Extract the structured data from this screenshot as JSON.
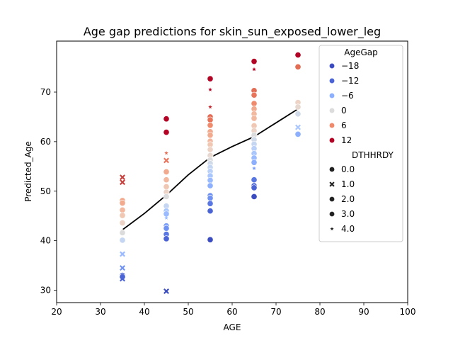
{
  "chart_data": {
    "type": "scatter",
    "title": "Age gap predictions for skin_sun_exposed_lower_leg",
    "xlabel": "AGE",
    "ylabel": "Predicted_Age",
    "xlim": [
      20,
      100
    ],
    "ylim": [
      27.5,
      80.3
    ],
    "xticks": [
      20,
      30,
      40,
      50,
      60,
      70,
      80,
      90,
      100
    ],
    "yticks": [
      30,
      40,
      50,
      60,
      70
    ],
    "grid": false,
    "legend": {
      "placement": "top-right",
      "hue_title": "AgeGap",
      "hue_entries": [
        {
          "label": "−18",
          "color": "#3b4cc0"
        },
        {
          "label": "−12",
          "color": "#4b64d5"
        },
        {
          "label": "−6",
          "color": "#8db0fe"
        },
        {
          "label": "0",
          "color": "#dddcdc"
        },
        {
          "label": "6",
          "color": "#f08a6c"
        },
        {
          "label": "12",
          "color": "#b40426"
        }
      ],
      "style_title": "DTHHRDY",
      "style_entries": [
        {
          "label": "0.0",
          "marker": "circle"
        },
        {
          "label": "1.0",
          "marker": "x"
        },
        {
          "label": "2.0",
          "marker": "circle"
        },
        {
          "label": "3.0",
          "marker": "circle"
        },
        {
          "label": "4.0",
          "marker": "star"
        }
      ]
    },
    "trend_line": {
      "x": [
        35,
        40,
        45,
        50,
        55,
        60,
        65,
        70,
        75
      ],
      "y": [
        42.2,
        45.5,
        49.2,
        53.3,
        56.8,
        59.0,
        61.0,
        63.8,
        66.6
      ]
    },
    "points": [
      {
        "x": 35,
        "y": 52.8,
        "marker": "x",
        "color": "#c8403c"
      },
      {
        "x": 35,
        "y": 51.8,
        "marker": "x",
        "color": "#c8403c"
      },
      {
        "x": 35,
        "y": 48.1,
        "marker": "circle",
        "color": "#f2aa8e"
      },
      {
        "x": 35,
        "y": 47.6,
        "marker": "circle",
        "color": "#f2aa8e"
      },
      {
        "x": 35,
        "y": 46.2,
        "marker": "circle",
        "color": "#f2b8a0"
      },
      {
        "x": 35,
        "y": 45.1,
        "marker": "circle",
        "color": "#f0c7b3"
      },
      {
        "x": 35,
        "y": 43.6,
        "marker": "circle",
        "color": "#ecd3c5"
      },
      {
        "x": 35,
        "y": 42.1,
        "marker": "star",
        "color": "#e6d7cf"
      },
      {
        "x": 35,
        "y": 41.6,
        "marker": "circle",
        "color": "#dddcdc"
      },
      {
        "x": 35,
        "y": 40.1,
        "marker": "circle",
        "color": "#c5d6f2"
      },
      {
        "x": 35,
        "y": 37.3,
        "marker": "x",
        "color": "#9abbff"
      },
      {
        "x": 35,
        "y": 34.5,
        "marker": "x",
        "color": "#6f92f3"
      },
      {
        "x": 35,
        "y": 33.0,
        "marker": "circle",
        "color": "#4b64d5"
      },
      {
        "x": 35,
        "y": 32.7,
        "marker": "circle",
        "color": "#4b64d5"
      },
      {
        "x": 35,
        "y": 32.3,
        "marker": "x",
        "color": "#4b64d5"
      },
      {
        "x": 45,
        "y": 64.6,
        "marker": "circle",
        "color": "#b40426"
      },
      {
        "x": 45,
        "y": 61.9,
        "marker": "circle",
        "color": "#b40426"
      },
      {
        "x": 45,
        "y": 57.7,
        "marker": "star",
        "color": "#e36c55"
      },
      {
        "x": 45,
        "y": 56.2,
        "marker": "x",
        "color": "#e7745b"
      },
      {
        "x": 45,
        "y": 53.9,
        "marker": "circle",
        "color": "#f2aa8e"
      },
      {
        "x": 45,
        "y": 52.3,
        "marker": "circle",
        "color": "#f2b8a0"
      },
      {
        "x": 45,
        "y": 50.9,
        "marker": "circle",
        "color": "#f0c7b3"
      },
      {
        "x": 45,
        "y": 49.8,
        "marker": "circle",
        "color": "#ecd3c5"
      },
      {
        "x": 45,
        "y": 48.9,
        "marker": "circle",
        "color": "#dddcdc"
      },
      {
        "x": 45,
        "y": 47.0,
        "marker": "circle",
        "color": "#c5d6f2"
      },
      {
        "x": 45,
        "y": 46.0,
        "marker": "circle",
        "color": "#aac7fd"
      },
      {
        "x": 45,
        "y": 45.4,
        "marker": "circle",
        "color": "#9abbff"
      },
      {
        "x": 45,
        "y": 44.6,
        "marker": "star",
        "color": "#9abbff"
      },
      {
        "x": 45,
        "y": 43.0,
        "marker": "circle",
        "color": "#7b9ff9"
      },
      {
        "x": 45,
        "y": 42.5,
        "marker": "circle",
        "color": "#6f92f3"
      },
      {
        "x": 45,
        "y": 41.3,
        "marker": "circle",
        "color": "#5977e3"
      },
      {
        "x": 45,
        "y": 40.4,
        "marker": "circle",
        "color": "#4b64d5"
      },
      {
        "x": 45,
        "y": 29.8,
        "marker": "x",
        "color": "#3b4cc0"
      },
      {
        "x": 55,
        "y": 72.7,
        "marker": "circle",
        "color": "#b40426"
      },
      {
        "x": 55,
        "y": 70.5,
        "marker": "star",
        "color": "#b40426"
      },
      {
        "x": 55,
        "y": 67.0,
        "marker": "star",
        "color": "#c0282f"
      },
      {
        "x": 55,
        "y": 65.0,
        "marker": "circle",
        "color": "#e36c55"
      },
      {
        "x": 55,
        "y": 64.4,
        "marker": "circle",
        "color": "#e7745b"
      },
      {
        "x": 55,
        "y": 63.3,
        "marker": "circle",
        "color": "#f08a6c"
      },
      {
        "x": 55,
        "y": 62.0,
        "marker": "circle",
        "color": "#f2aa8e"
      },
      {
        "x": 55,
        "y": 61.3,
        "marker": "circle",
        "color": "#f2aa8e"
      },
      {
        "x": 55,
        "y": 60.1,
        "marker": "circle",
        "color": "#f2b8a0"
      },
      {
        "x": 55,
        "y": 59.4,
        "marker": "circle",
        "color": "#f0c7b3"
      },
      {
        "x": 55,
        "y": 58.4,
        "marker": "circle",
        "color": "#ecd3c5"
      },
      {
        "x": 55,
        "y": 57.2,
        "marker": "circle",
        "color": "#e6d7cf"
      },
      {
        "x": 55,
        "y": 56.3,
        "marker": "circle",
        "color": "#dddcdc"
      },
      {
        "x": 55,
        "y": 55.6,
        "marker": "circle",
        "color": "#d1dae9"
      },
      {
        "x": 55,
        "y": 54.8,
        "marker": "circle",
        "color": "#c5d6f2"
      },
      {
        "x": 55,
        "y": 54.0,
        "marker": "circle",
        "color": "#b9d0f9"
      },
      {
        "x": 55,
        "y": 53.1,
        "marker": "circle",
        "color": "#aac7fd"
      },
      {
        "x": 55,
        "y": 52.2,
        "marker": "circle",
        "color": "#9abbff"
      },
      {
        "x": 55,
        "y": 51.1,
        "marker": "circle",
        "color": "#8db0fe"
      },
      {
        "x": 55,
        "y": 49.1,
        "marker": "circle",
        "color": "#6f92f3"
      },
      {
        "x": 55,
        "y": 48.6,
        "marker": "circle",
        "color": "#6f92f3"
      },
      {
        "x": 55,
        "y": 47.5,
        "marker": "circle",
        "color": "#5977e3"
      },
      {
        "x": 55,
        "y": 46.0,
        "marker": "circle",
        "color": "#4b64d5"
      },
      {
        "x": 55,
        "y": 40.2,
        "marker": "circle",
        "color": "#3b4cc0"
      },
      {
        "x": 65,
        "y": 76.2,
        "marker": "circle",
        "color": "#b40426"
      },
      {
        "x": 65,
        "y": 74.6,
        "marker": "star",
        "color": "#b40426"
      },
      {
        "x": 65,
        "y": 70.3,
        "marker": "circle",
        "color": "#e36c55"
      },
      {
        "x": 65,
        "y": 69.4,
        "marker": "circle",
        "color": "#e7745b"
      },
      {
        "x": 65,
        "y": 67.7,
        "marker": "circle",
        "color": "#f08a6c"
      },
      {
        "x": 65,
        "y": 66.6,
        "marker": "circle",
        "color": "#f2aa8e"
      },
      {
        "x": 65,
        "y": 65.6,
        "marker": "circle",
        "color": "#f2b8a0"
      },
      {
        "x": 65,
        "y": 64.7,
        "marker": "circle",
        "color": "#f2b8a0"
      },
      {
        "x": 65,
        "y": 63.2,
        "marker": "circle",
        "color": "#f0c7b3"
      },
      {
        "x": 65,
        "y": 62.2,
        "marker": "circle",
        "color": "#ecd3c5"
      },
      {
        "x": 65,
        "y": 61.3,
        "marker": "circle",
        "color": "#dddcdc"
      },
      {
        "x": 65,
        "y": 60.4,
        "marker": "circle",
        "color": "#d1dae9"
      },
      {
        "x": 65,
        "y": 59.5,
        "marker": "circle",
        "color": "#c5d6f2"
      },
      {
        "x": 65,
        "y": 58.6,
        "marker": "circle",
        "color": "#b9d0f9"
      },
      {
        "x": 65,
        "y": 57.6,
        "marker": "circle",
        "color": "#aac7fd"
      },
      {
        "x": 65,
        "y": 56.7,
        "marker": "circle",
        "color": "#9abbff"
      },
      {
        "x": 65,
        "y": 55.8,
        "marker": "circle",
        "color": "#8db0fe"
      },
      {
        "x": 65,
        "y": 54.6,
        "marker": "star",
        "color": "#7b9ff9"
      },
      {
        "x": 65,
        "y": 52.3,
        "marker": "circle",
        "color": "#5977e3"
      },
      {
        "x": 65,
        "y": 51.1,
        "marker": "circle",
        "color": "#4b64d5"
      },
      {
        "x": 65,
        "y": 50.7,
        "marker": "circle",
        "color": "#4b64d5"
      },
      {
        "x": 65,
        "y": 48.9,
        "marker": "circle",
        "color": "#3b4cc0"
      },
      {
        "x": 75,
        "y": 77.5,
        "marker": "circle",
        "color": "#b40426"
      },
      {
        "x": 75,
        "y": 75.1,
        "marker": "circle",
        "color": "#e36c55"
      },
      {
        "x": 75,
        "y": 67.9,
        "marker": "circle",
        "color": "#ecd3c5"
      },
      {
        "x": 75,
        "y": 67.0,
        "marker": "circle",
        "color": "#e6d7cf"
      },
      {
        "x": 75,
        "y": 65.6,
        "marker": "circle",
        "color": "#d1dae9"
      },
      {
        "x": 75,
        "y": 62.9,
        "marker": "x",
        "color": "#aac7fd"
      },
      {
        "x": 75,
        "y": 61.5,
        "marker": "circle",
        "color": "#8db0fe"
      }
    ]
  }
}
